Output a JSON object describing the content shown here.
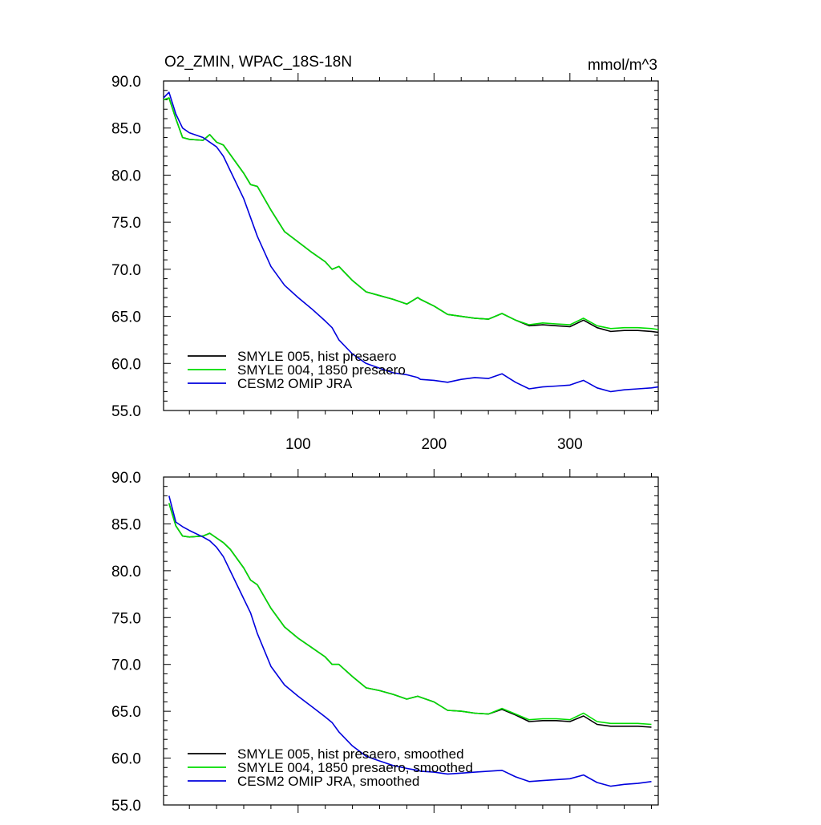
{
  "figure": {
    "title": "O2_ZMIN, WPAC_18S-18N",
    "units": "mmol/m^3"
  },
  "chart_data": [
    {
      "type": "line",
      "title": "O2_ZMIN, WPAC_18S-18N",
      "units": "mmol/m^3",
      "xlabel": "",
      "ylabel": "",
      "xlim": [
        1,
        365
      ],
      "ylim": [
        55,
        90
      ],
      "xticks": [
        100,
        200,
        300
      ],
      "xtick_labels": [
        "100",
        "200",
        "300"
      ],
      "yticks": [
        55,
        60,
        65,
        70,
        75,
        80,
        85,
        90
      ],
      "ytick_labels": [
        "55.0",
        "60.0",
        "65.0",
        "70.0",
        "75.0",
        "80.0",
        "85.0",
        "90.0"
      ],
      "grid": false,
      "legend_position": "bottom-left",
      "x": [
        1,
        5,
        10,
        15,
        20,
        30,
        35,
        40,
        45,
        50,
        60,
        65,
        70,
        80,
        90,
        100,
        110,
        120,
        125,
        130,
        140,
        150,
        160,
        170,
        180,
        188,
        190,
        200,
        210,
        220,
        230,
        240,
        250,
        260,
        270,
        280,
        290,
        300,
        310,
        320,
        330,
        340,
        350,
        360,
        365
      ],
      "series": [
        {
          "name": "SMYLE 005, hist presaero",
          "color": "#000000",
          "values": [
            88.0,
            88.2,
            86.0,
            84.0,
            83.8,
            83.7,
            84.3,
            83.5,
            83.2,
            82.2,
            80.2,
            79.0,
            78.8,
            76.3,
            74.0,
            72.9,
            71.8,
            70.8,
            70.0,
            70.3,
            68.8,
            67.6,
            67.2,
            66.8,
            66.3,
            67.0,
            66.8,
            66.1,
            65.2,
            65.0,
            64.8,
            64.7,
            65.3,
            64.6,
            64.0,
            64.1,
            64.0,
            63.9,
            64.6,
            63.8,
            63.4,
            63.5,
            63.5,
            63.4,
            63.3
          ]
        },
        {
          "name": "SMYLE 004, 1850 presaero",
          "color": "#00dd00",
          "values": [
            88.0,
            88.2,
            86.0,
            84.0,
            83.8,
            83.7,
            84.3,
            83.5,
            83.2,
            82.2,
            80.2,
            79.0,
            78.8,
            76.3,
            74.0,
            72.9,
            71.8,
            70.8,
            70.0,
            70.3,
            68.8,
            67.6,
            67.2,
            66.8,
            66.3,
            67.0,
            66.8,
            66.1,
            65.2,
            65.0,
            64.8,
            64.7,
            65.3,
            64.6,
            64.1,
            64.3,
            64.2,
            64.1,
            64.8,
            64.0,
            63.7,
            63.8,
            63.8,
            63.7,
            63.6
          ]
        },
        {
          "name": "CESM2 OMIP JRA",
          "color": "#0000dd",
          "values": [
            88.2,
            88.8,
            86.5,
            85.0,
            84.5,
            84.0,
            83.5,
            83.0,
            82.0,
            80.5,
            77.5,
            75.5,
            73.5,
            70.3,
            68.3,
            67.0,
            65.8,
            64.5,
            63.8,
            62.5,
            61.0,
            60.0,
            59.5,
            59.0,
            58.8,
            58.5,
            58.3,
            58.2,
            58.0,
            58.3,
            58.5,
            58.4,
            58.9,
            58.0,
            57.3,
            57.5,
            57.6,
            57.7,
            58.2,
            57.4,
            57.0,
            57.2,
            57.3,
            57.4,
            57.5
          ]
        }
      ]
    },
    {
      "type": "line",
      "title": "",
      "xlabel": "",
      "ylabel": "",
      "xlim": [
        1,
        365
      ],
      "ylim": [
        55,
        90
      ],
      "xticks": [
        100,
        200,
        300
      ],
      "xtick_labels": [],
      "yticks": [
        55,
        60,
        65,
        70,
        75,
        80,
        85,
        90
      ],
      "ytick_labels": [
        "55.0",
        "60.0",
        "65.0",
        "70.0",
        "75.0",
        "80.0",
        "85.0",
        "90.0"
      ],
      "grid": false,
      "legend_position": "bottom-left",
      "x": [
        5,
        10,
        15,
        20,
        30,
        35,
        40,
        45,
        50,
        60,
        65,
        70,
        80,
        90,
        100,
        110,
        120,
        125,
        130,
        140,
        150,
        160,
        170,
        180,
        188,
        190,
        200,
        210,
        220,
        230,
        240,
        250,
        260,
        270,
        280,
        290,
        300,
        310,
        320,
        330,
        340,
        350,
        360
      ],
      "series": [
        {
          "name": "SMYLE 005, hist presaero, smoothed",
          "color": "#000000",
          "values": [
            87.2,
            84.8,
            83.7,
            83.6,
            83.7,
            84.0,
            83.5,
            83.0,
            82.3,
            80.3,
            79.0,
            78.5,
            76.0,
            74.0,
            72.8,
            71.8,
            70.8,
            70.0,
            70.0,
            68.7,
            67.5,
            67.2,
            66.8,
            66.3,
            66.6,
            66.5,
            66.0,
            65.1,
            65.0,
            64.8,
            64.7,
            65.2,
            64.6,
            63.9,
            64.0,
            64.0,
            63.9,
            64.5,
            63.6,
            63.4,
            63.4,
            63.4,
            63.3
          ]
        },
        {
          "name": "SMYLE 004, 1850 presaero, smoothed",
          "color": "#00dd00",
          "values": [
            87.2,
            84.8,
            83.7,
            83.6,
            83.7,
            84.0,
            83.5,
            83.0,
            82.3,
            80.3,
            79.0,
            78.5,
            76.0,
            74.0,
            72.8,
            71.8,
            70.8,
            70.0,
            70.0,
            68.7,
            67.5,
            67.2,
            66.8,
            66.3,
            66.6,
            66.5,
            66.0,
            65.1,
            65.0,
            64.8,
            64.7,
            65.3,
            64.7,
            64.1,
            64.2,
            64.2,
            64.1,
            64.8,
            63.9,
            63.7,
            63.7,
            63.7,
            63.6
          ]
        },
        {
          "name": "CESM2 OMIP JRA, smoothed",
          "color": "#0000dd",
          "values": [
            88.0,
            85.2,
            84.7,
            84.3,
            83.6,
            83.2,
            82.5,
            81.5,
            80.0,
            77.0,
            75.5,
            73.3,
            69.8,
            67.8,
            66.6,
            65.5,
            64.4,
            63.8,
            62.8,
            61.3,
            60.2,
            59.7,
            59.2,
            58.9,
            58.7,
            58.6,
            58.5,
            58.3,
            58.4,
            58.5,
            58.6,
            58.7,
            58.0,
            57.5,
            57.6,
            57.7,
            57.8,
            58.2,
            57.4,
            57.0,
            57.2,
            57.3,
            57.5
          ]
        }
      ]
    }
  ]
}
